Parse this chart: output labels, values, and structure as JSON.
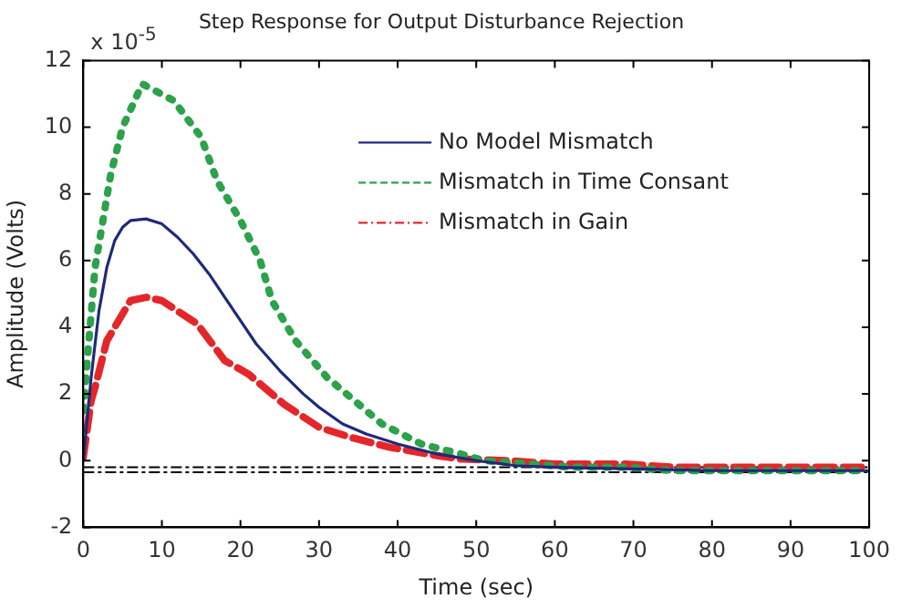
{
  "chart_data": {
    "type": "line",
    "title": "Step Response for Output Disturbance Rejection",
    "xlabel": "Time (sec)",
    "ylabel": "Amplitude (Volts)",
    "annotations": [
      "x 10$^{-5}$"
    ],
    "xlim": [
      0,
      100
    ],
    "xticks": [
      0,
      10,
      20,
      30,
      40,
      50,
      60,
      70,
      80,
      90,
      100
    ],
    "ylim": [
      -2,
      12
    ],
    "yticks": [
      -2,
      0,
      2,
      4,
      6,
      8,
      10,
      12
    ],
    "grid": false,
    "legend": "top right",
    "ref_lines": [
      {
        "axis": "y",
        "value": -0.2,
        "color": "#000000",
        "line_style": "dashed"
      },
      {
        "axis": "y",
        "value": -0.35,
        "color": "#000000",
        "line_style": "dashed"
      }
    ],
    "series": [
      {
        "name": "No Model Mismatch",
        "color": "#1f2a7a",
        "line_style": "solid",
        "x": [
          0,
          1,
          2,
          3,
          4,
          5,
          6,
          8,
          10,
          12,
          14,
          16,
          18,
          20,
          22,
          25,
          28,
          30,
          33,
          36,
          40,
          45,
          50,
          55,
          60,
          70,
          80,
          90,
          100
        ],
        "values": [
          0,
          2.5,
          4.5,
          5.8,
          6.6,
          7.0,
          7.2,
          7.25,
          7.1,
          6.7,
          6.2,
          5.6,
          4.9,
          4.2,
          3.5,
          2.7,
          2.0,
          1.6,
          1.1,
          0.8,
          0.5,
          0.2,
          0.0,
          -0.15,
          -0.2,
          -0.25,
          -0.3,
          -0.3,
          -0.3
        ]
      },
      {
        "name": "Mismatch in Time Consant",
        "color": "#2ca24a",
        "line_style": "dotted",
        "x": [
          0,
          0.5,
          1,
          1.5,
          2.5,
          3.5,
          5,
          7.5,
          11.5,
          15,
          17,
          20,
          22.5,
          24,
          27,
          31,
          35,
          38,
          43,
          48,
          51,
          57,
          62,
          69,
          75,
          81,
          87,
          93,
          99
        ],
        "values": [
          1.5,
          3.0,
          4.4,
          5.8,
          7.2,
          8.6,
          10,
          11.3,
          10.8,
          9.7,
          8.4,
          7.2,
          6.0,
          4.8,
          3.6,
          2.5,
          1.7,
          1.1,
          0.5,
          0.2,
          0.0,
          -0.1,
          -0.2,
          -0.2,
          -0.3,
          -0.3,
          -0.3,
          -0.3,
          -0.3
        ]
      },
      {
        "name": "Mismatch in Gain",
        "color": "#e4262b",
        "line_style": "dashed",
        "x": [
          0,
          1,
          1.5,
          3,
          6,
          8,
          10,
          14.5,
          18,
          21,
          25.5,
          30,
          34,
          39,
          45,
          48,
          54,
          60,
          63,
          69,
          75,
          78,
          84,
          90,
          93,
          99
        ],
        "values": [
          0.1,
          1.8,
          2.2,
          3.6,
          4.8,
          4.9,
          4.8,
          4.1,
          3.0,
          2.6,
          1.7,
          1.0,
          0.7,
          0.4,
          0.15,
          0.05,
          0,
          -0.1,
          -0.1,
          -0.1,
          -0.2,
          -0.2,
          -0.2,
          -0.2,
          -0.2,
          -0.2
        ]
      }
    ]
  }
}
